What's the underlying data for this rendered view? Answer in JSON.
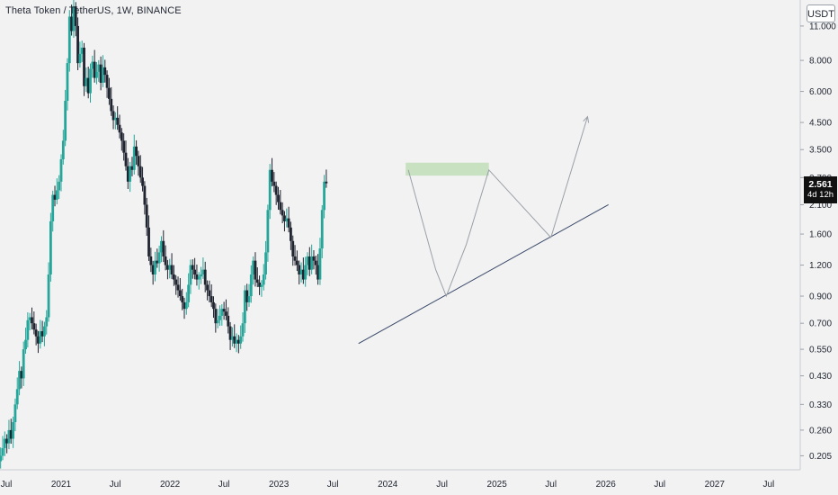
{
  "header": {
    "symbol_line": "Theta Token / TetherUS, 1W, BINANCE"
  },
  "price_scale": {
    "unit": "USDT"
  },
  "last_price": {
    "value": "2.561",
    "countdown": "4d 12h"
  },
  "colors": {
    "up": "#26a69a",
    "down": "#1f2430",
    "zone": "#b9dcb0",
    "trendline": "#3b4a6b",
    "projection": "#9aa0a8",
    "background": "#f2f2f2"
  },
  "chart_data": {
    "type": "candlestick",
    "title": "Theta Token / TetherUS, 1W, BINANCE",
    "scale": "log",
    "ylim": [
      0.18,
      14
    ],
    "xlim": [
      "2020-06-10",
      "2027-10-15"
    ],
    "y_ticks": [
      "11.000",
      "8.000",
      "6.000",
      "4.500",
      "3.500",
      "2.700",
      "2.100",
      "1.600",
      "1.200",
      "0.900",
      "0.700",
      "0.550",
      "0.430",
      "0.330",
      "0.260",
      "0.205"
    ],
    "x_ticks": [
      {
        "label": "Jul",
        "date": "2020-07-01"
      },
      {
        "label": "2021",
        "date": "2021-01-01"
      },
      {
        "label": "Jul",
        "date": "2021-07-01"
      },
      {
        "label": "2022",
        "date": "2022-01-01"
      },
      {
        "label": "Jul",
        "date": "2022-07-01"
      },
      {
        "label": "2023",
        "date": "2023-01-01"
      },
      {
        "label": "Jul",
        "date": "2023-07-01"
      },
      {
        "label": "2024",
        "date": "2024-01-01"
      },
      {
        "label": "Jul",
        "date": "2024-07-01"
      },
      {
        "label": "2025",
        "date": "2025-01-01"
      },
      {
        "label": "Jul",
        "date": "2025-07-01"
      },
      {
        "label": "2026",
        "date": "2026-01-01"
      },
      {
        "label": "Jul",
        "date": "2026-07-01"
      },
      {
        "label": "2027",
        "date": "2027-01-01"
      },
      {
        "label": "Jul",
        "date": "2027-07-01"
      }
    ],
    "start_date": "2020-06-12",
    "closes": [
      0.205,
      0.22,
      0.24,
      0.23,
      0.26,
      0.24,
      0.28,
      0.33,
      0.38,
      0.45,
      0.42,
      0.55,
      0.6,
      0.72,
      0.74,
      0.7,
      0.66,
      0.62,
      0.58,
      0.65,
      0.62,
      0.68,
      0.74,
      1.1,
      1.8,
      2.3,
      2.2,
      2.4,
      2.6,
      3.2,
      3.8,
      5.5,
      7.8,
      12.0,
      10.5,
      13.2,
      11.0,
      7.8,
      8.5,
      9.0,
      6.3,
      6.8,
      5.9,
      7.4,
      7.9,
      6.8,
      7.2,
      7.7,
      6.5,
      7.5,
      7.0,
      6.2,
      5.6,
      5.0,
      4.6,
      4.7,
      4.4,
      4.1,
      3.8,
      3.4,
      3.0,
      2.6,
      3.0,
      2.9,
      3.6,
      3.3,
      3.0,
      2.7,
      2.5,
      2.1,
      1.7,
      1.3,
      1.2,
      1.1,
      1.25,
      1.22,
      1.35,
      1.5,
      1.3,
      1.2,
      1.15,
      1.2,
      1.1,
      1.05,
      1.0,
      0.95,
      0.9,
      0.85,
      0.8,
      0.85,
      1.0,
      1.2,
      1.15,
      1.1,
      1.05,
      1.08,
      1.1,
      1.15,
      1.0,
      0.95,
      0.9,
      0.85,
      0.8,
      0.7,
      0.72,
      0.75,
      0.8,
      0.78,
      0.75,
      0.68,
      0.6,
      0.62,
      0.58,
      0.6,
      0.58,
      0.62,
      0.7,
      0.95,
      0.85,
      0.9,
      1.1,
      1.25,
      1.05,
      1.02,
      0.98,
      1.0,
      1.1,
      1.35,
      2.0,
      2.9,
      2.6,
      2.5,
      2.3,
      2.15,
      2.0,
      1.9,
      1.8,
      1.85,
      1.7,
      1.5,
      1.3,
      1.25,
      1.2,
      1.1,
      1.15,
      1.05,
      1.2,
      1.3,
      1.15,
      1.3,
      1.25,
      1.2,
      1.05,
      1.4,
      2.0,
      2.6,
      2.561
    ],
    "zone": {
      "start": "2024-03-01",
      "end": "2024-12-05",
      "low": 2.75,
      "high": 3.1
    },
    "trendline": [
      {
        "date": "2023-09-25",
        "price": 0.58
      },
      {
        "date": "2026-01-10",
        "price": 2.1
      }
    ],
    "projection": [
      {
        "date": "2024-03-10",
        "price": 2.9
      },
      {
        "date": "2024-06-10",
        "price": 1.15
      },
      {
        "date": "2024-07-15",
        "price": 0.9
      },
      {
        "date": "2024-09-20",
        "price": 1.45
      },
      {
        "date": "2024-12-05",
        "price": 2.9
      },
      {
        "date": "2025-07-01",
        "price": 1.55
      },
      {
        "date": "2025-11-01",
        "price": 4.75
      }
    ]
  }
}
